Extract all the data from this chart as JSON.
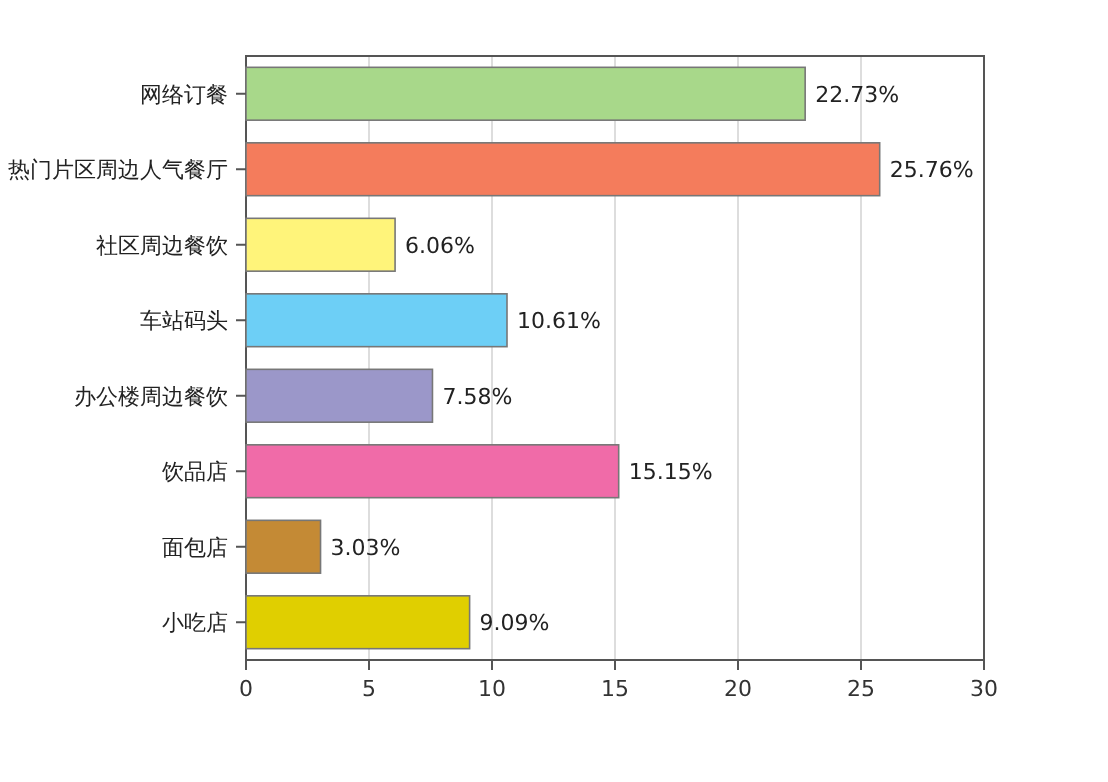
{
  "chart_data": {
    "type": "bar",
    "orientation": "horizontal",
    "categories": [
      "网络订餐",
      "热门片区周边人气餐厅",
      "社区周边餐饮",
      "车站码头",
      "办公楼周边餐饮",
      "饮品店",
      "面包店",
      "小吃店"
    ],
    "values": [
      22.73,
      25.76,
      6.06,
      10.61,
      7.58,
      15.15,
      3.03,
      9.09
    ],
    "value_labels": [
      "22.73%",
      "25.76%",
      "6.06%",
      "10.61%",
      "7.58%",
      "15.15%",
      "3.03%",
      "9.09%"
    ],
    "colors": [
      "#a8d88a",
      "#f47c5c",
      "#fff47a",
      "#6dcff6",
      "#9b97c9",
      "#f06ba8",
      "#c48a35",
      "#e0cf00"
    ],
    "xlim": [
      0,
      30
    ],
    "xticks": [
      0,
      5,
      10,
      15,
      20,
      25,
      30
    ],
    "grid": "x"
  }
}
